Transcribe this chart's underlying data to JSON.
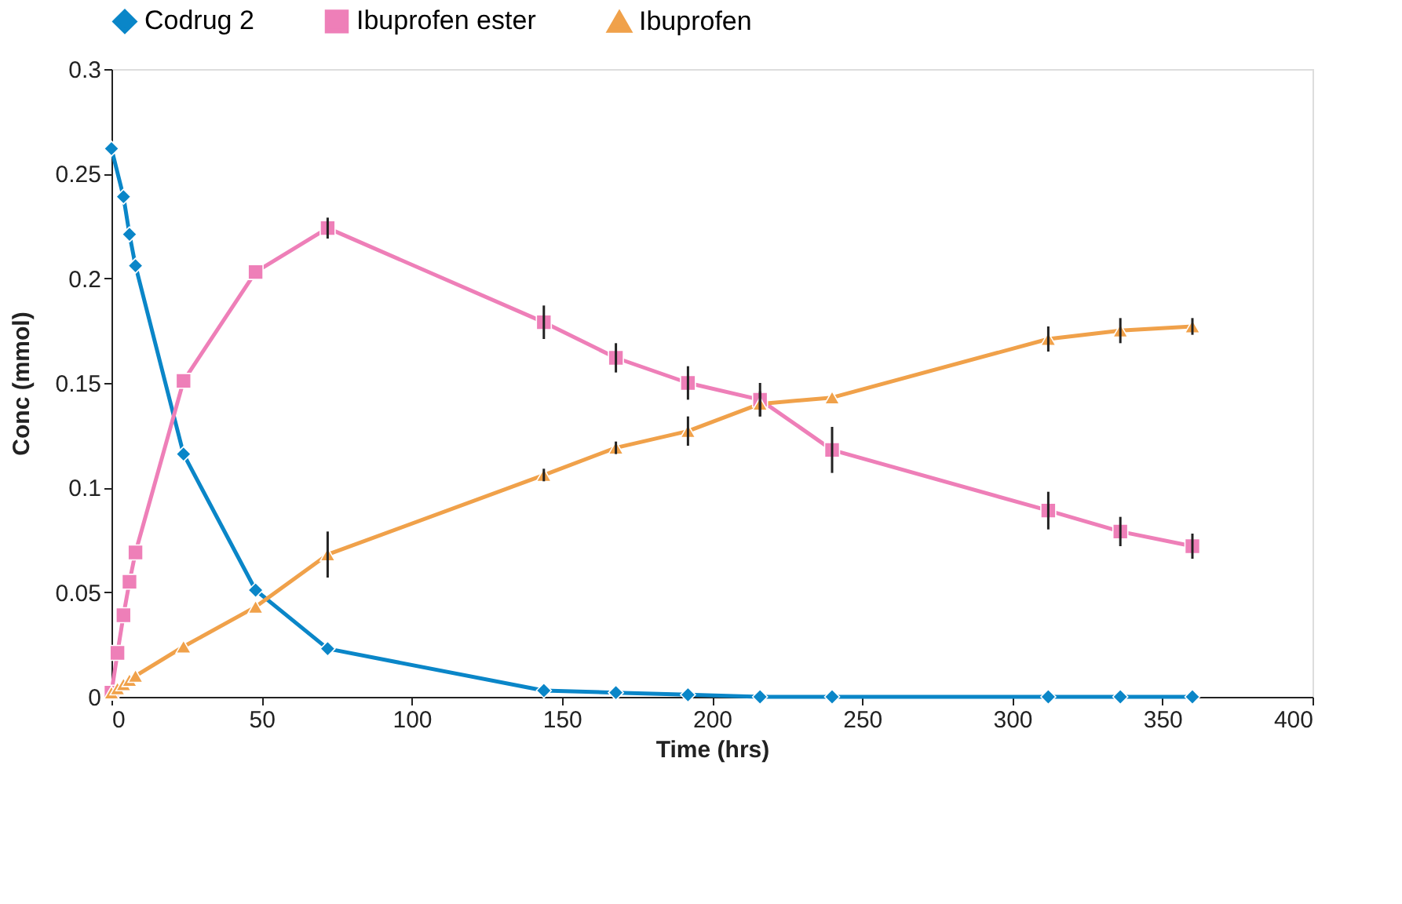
{
  "chart_data": {
    "type": "line",
    "xlabel": "Time (hrs)",
    "ylabel": "Conc (mmol)",
    "xlim": [
      0,
      400
    ],
    "xticks": [
      0,
      50,
      100,
      150,
      200,
      250,
      300,
      350,
      400
    ],
    "ylim": [
      0,
      0.3
    ],
    "yticks": [
      0,
      0.05,
      0.1,
      0.15,
      0.2,
      0.25,
      0.3
    ],
    "grid": false,
    "legend": "top",
    "line_style": "solid",
    "series": [
      {
        "name": "Codrug 2",
        "color": "#0a86c8",
        "marker": "diamond",
        "x": [
          0,
          4,
          6,
          8,
          24,
          48,
          72,
          144,
          168,
          192,
          216,
          240,
          312,
          336,
          360
        ],
        "values": [
          0.262,
          0.239,
          0.221,
          0.206,
          0.116,
          0.051,
          0.023,
          0.003,
          0.002,
          0.001,
          0,
          0,
          0,
          0,
          0
        ]
      },
      {
        "name": "Ibuprofen ester",
        "color": "#ee7fb8",
        "marker": "square",
        "x": [
          0,
          2,
          4,
          6,
          8,
          24,
          48,
          72,
          144,
          168,
          192,
          216,
          240,
          312,
          336,
          360
        ],
        "values": [
          0.002,
          0.021,
          0.039,
          0.055,
          0.069,
          0.151,
          0.203,
          0.224,
          0.179,
          0.162,
          0.15,
          0.142,
          0.118,
          0.089,
          0.079,
          0.072
        ],
        "errors": [
          null,
          null,
          null,
          null,
          null,
          null,
          null,
          0.005,
          0.008,
          0.007,
          0.008,
          0.008,
          0.011,
          0.009,
          0.007,
          0.006
        ]
      },
      {
        "name": "Ibuprofen",
        "color": "#f0a14a",
        "marker": "triangle",
        "x": [
          0,
          2,
          4,
          6,
          8,
          24,
          48,
          72,
          144,
          168,
          192,
          216,
          240,
          312,
          336,
          360
        ],
        "values": [
          0.002,
          0.004,
          0.006,
          0.008,
          0.01,
          0.024,
          0.043,
          0.068,
          0.106,
          0.119,
          0.127,
          0.14,
          0.143,
          0.171,
          0.175,
          0.177
        ],
        "errors": [
          null,
          null,
          null,
          null,
          null,
          null,
          null,
          0.011,
          0.003,
          0.003,
          0.007,
          0.006,
          null,
          0.006,
          0.006,
          0.004
        ]
      }
    ]
  }
}
